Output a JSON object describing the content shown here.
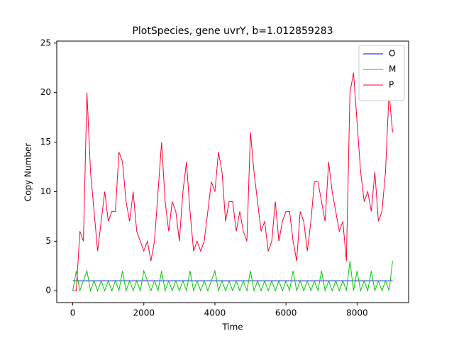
{
  "chart_data": {
    "type": "line",
    "title": "PlotSpecies, gene uvrY, b=1.012859283",
    "xlabel": "Time",
    "ylabel": "Copy Number",
    "x": [
      0,
      100,
      200,
      300,
      400,
      500,
      600,
      700,
      800,
      900,
      1000,
      1100,
      1200,
      1300,
      1400,
      1500,
      1600,
      1700,
      1800,
      1900,
      2000,
      2100,
      2200,
      2300,
      2400,
      2500,
      2600,
      2700,
      2800,
      2900,
      3000,
      3100,
      3200,
      3300,
      3400,
      3500,
      3600,
      3700,
      3800,
      3900,
      4000,
      4100,
      4200,
      4300,
      4400,
      4500,
      4600,
      4700,
      4800,
      4900,
      5000,
      5100,
      5200,
      5300,
      5400,
      5500,
      5600,
      5700,
      5800,
      5900,
      6000,
      6100,
      6200,
      6300,
      6400,
      6500,
      6600,
      6700,
      6800,
      6900,
      7000,
      7100,
      7200,
      7300,
      7400,
      7500,
      7600,
      7700,
      7800,
      7900,
      8000,
      8100,
      8200,
      8300,
      8400,
      8500,
      8600,
      8700,
      8800,
      8900,
      9000
    ],
    "series": [
      {
        "name": "O",
        "color": "#0000ff",
        "values": [
          1,
          1,
          1,
          1,
          1,
          1,
          1,
          1,
          1,
          1,
          1,
          1,
          1,
          1,
          1,
          1,
          1,
          1,
          1,
          1,
          1,
          1,
          1,
          1,
          1,
          1,
          1,
          1,
          1,
          1,
          1,
          1,
          1,
          1,
          1,
          1,
          1,
          1,
          1,
          1,
          1,
          1,
          1,
          1,
          1,
          1,
          1,
          1,
          1,
          1,
          1,
          1,
          1,
          1,
          1,
          1,
          1,
          1,
          1,
          1,
          1,
          1,
          1,
          1,
          1,
          1,
          1,
          1,
          1,
          1,
          1,
          1,
          1,
          1,
          1,
          1,
          1,
          1,
          1,
          1,
          1,
          1,
          1,
          1,
          1,
          1,
          1,
          1,
          1,
          1,
          1
        ]
      },
      {
        "name": "M",
        "color": "#00cc00",
        "values": [
          0,
          2,
          0,
          1,
          2,
          0,
          1,
          0,
          1,
          0,
          1,
          0,
          1,
          0,
          2,
          0,
          1,
          0,
          1,
          0,
          2,
          1,
          0,
          1,
          0,
          2,
          0,
          1,
          0,
          1,
          0,
          1,
          0,
          2,
          0,
          1,
          0,
          1,
          0,
          1,
          2,
          0,
          1,
          0,
          1,
          0,
          1,
          0,
          1,
          0,
          2,
          0,
          1,
          0,
          1,
          0,
          1,
          0,
          1,
          0,
          1,
          0,
          2,
          0,
          1,
          0,
          1,
          0,
          1,
          0,
          2,
          0,
          1,
          0,
          1,
          0,
          1,
          0,
          3,
          0,
          2,
          0,
          1,
          0,
          2,
          0,
          1,
          0,
          1,
          0,
          3
        ]
      },
      {
        "name": "P",
        "color": "#ff0033",
        "values": [
          0,
          0,
          6,
          5,
          20,
          12,
          8,
          4,
          7,
          10,
          7,
          8,
          8,
          14,
          13,
          9,
          7,
          10,
          6,
          5,
          4,
          5,
          3,
          5,
          10,
          15,
          9,
          6,
          9,
          8,
          5,
          10,
          13,
          8,
          4,
          5,
          4,
          5,
          8,
          11,
          10,
          14,
          12,
          7,
          9,
          9,
          6,
          8,
          6,
          5,
          16,
          12,
          9,
          6,
          7,
          4,
          5,
          9,
          5,
          7,
          8,
          8,
          5,
          3,
          8,
          7,
          4,
          7,
          11,
          11,
          9,
          7,
          13,
          10,
          8,
          6,
          7,
          3,
          20,
          22,
          17,
          12,
          9,
          10,
          8,
          12,
          7,
          8,
          12,
          20,
          16
        ]
      }
    ],
    "xlim": [
      -450,
      9450
    ],
    "ylim": [
      -1.2,
      25.2
    ],
    "xticks": [
      0,
      2000,
      4000,
      6000,
      8000
    ],
    "yticks": [
      0,
      5,
      10,
      15,
      20,
      25
    ],
    "legend": "upper right"
  }
}
